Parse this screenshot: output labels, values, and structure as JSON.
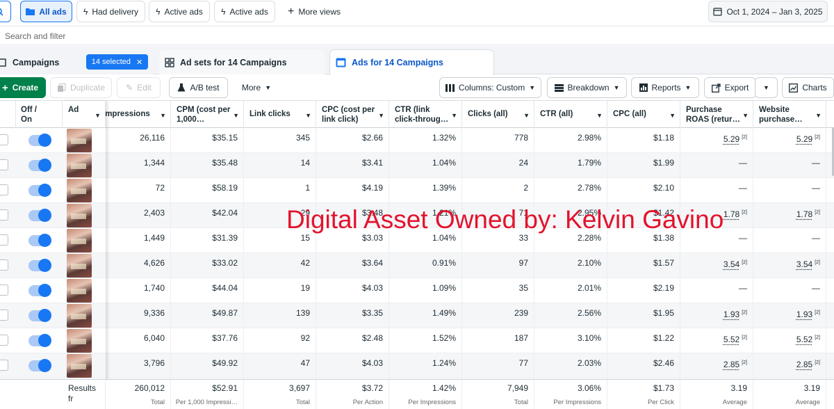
{
  "views": {
    "all_ads": "All ads",
    "had_delivery": "Had delivery",
    "active_ads_1": "Active ads",
    "active_ads_2": "Active ads",
    "more_views": "More views",
    "date_range": "Oct 1, 2024 – Jan 3, 2025"
  },
  "search": {
    "placeholder": "Search and filter"
  },
  "tabs": {
    "campaigns": "Campaigns",
    "selected": "14 selected",
    "ad_sets": "Ad sets for 14 Campaigns",
    "ads": "Ads for 14 Campaigns"
  },
  "toolbar": {
    "create": "Create",
    "duplicate": "Duplicate",
    "edit": "Edit",
    "ab_test": "A/B test",
    "more": "More",
    "columns": "Columns: Custom",
    "breakdown": "Breakdown",
    "reports": "Reports",
    "export": "Export",
    "charts": "Charts"
  },
  "columns": {
    "off_on": "Off /\nOn",
    "ad": "Ad",
    "impressions": "Impressions",
    "cpm": "CPM (cost per 1,000…",
    "link_clicks": "Link clicks",
    "cpc_link": "CPC (cost per link click)",
    "ctr_link": "CTR (link click-throug…",
    "clicks_all": "Clicks (all)",
    "ctr_all": "CTR (all)",
    "cpc_all": "CPC (all)",
    "purchase_roas": "Purchase ROAS (retur…",
    "website_purchase": "Website purchase…"
  },
  "rows": [
    {
      "impressions": "26,116",
      "cpm": "$35.15",
      "link_clicks": "345",
      "cpc_link": "$2.66",
      "ctr_link": "1.32%",
      "clicks_all": "778",
      "ctr_all": "2.98%",
      "cpc_all": "$1.18",
      "roas": "5.29",
      "web": "5.29",
      "note": "[2]"
    },
    {
      "impressions": "1,344",
      "cpm": "$35.48",
      "link_clicks": "14",
      "cpc_link": "$3.41",
      "ctr_link": "1.04%",
      "clicks_all": "24",
      "ctr_all": "1.79%",
      "cpc_all": "$1.99",
      "roas": "—",
      "web": "—",
      "note": ""
    },
    {
      "impressions": "72",
      "cpm": "$58.19",
      "link_clicks": "1",
      "cpc_link": "$4.19",
      "ctr_link": "1.39%",
      "clicks_all": "2",
      "ctr_all": "2.78%",
      "cpc_all": "$2.10",
      "roas": "—",
      "web": "—",
      "note": ""
    },
    {
      "impressions": "2,403",
      "cpm": "$42.04",
      "link_clicks": "29",
      "cpc_link": "$3.48",
      "ctr_link": "1.21%",
      "clicks_all": "71",
      "ctr_all": "2.95%",
      "cpc_all": "$1.42",
      "roas": "1.78",
      "web": "1.78",
      "note": "[2]"
    },
    {
      "impressions": "1,449",
      "cpm": "$31.39",
      "link_clicks": "15",
      "cpc_link": "$3.03",
      "ctr_link": "1.04%",
      "clicks_all": "33",
      "ctr_all": "2.28%",
      "cpc_all": "$1.38",
      "roas": "—",
      "web": "—",
      "note": ""
    },
    {
      "impressions": "4,626",
      "cpm": "$33.02",
      "link_clicks": "42",
      "cpc_link": "$3.64",
      "ctr_link": "0.91%",
      "clicks_all": "97",
      "ctr_all": "2.10%",
      "cpc_all": "$1.57",
      "roas": "3.54",
      "web": "3.54",
      "note": "[2]"
    },
    {
      "impressions": "1,740",
      "cpm": "$44.04",
      "link_clicks": "19",
      "cpc_link": "$4.03",
      "ctr_link": "1.09%",
      "clicks_all": "35",
      "ctr_all": "2.01%",
      "cpc_all": "$2.19",
      "roas": "—",
      "web": "—",
      "note": ""
    },
    {
      "impressions": "9,336",
      "cpm": "$49.87",
      "link_clicks": "139",
      "cpc_link": "$3.35",
      "ctr_link": "1.49%",
      "clicks_all": "239",
      "ctr_all": "2.56%",
      "cpc_all": "$1.95",
      "roas": "1.93",
      "web": "1.93",
      "note": "[2]"
    },
    {
      "impressions": "6,040",
      "cpm": "$37.76",
      "link_clicks": "92",
      "cpc_link": "$2.48",
      "ctr_link": "1.52%",
      "clicks_all": "187",
      "ctr_all": "3.10%",
      "cpc_all": "$1.22",
      "roas": "5.52",
      "web": "5.52",
      "note": "[2]"
    },
    {
      "impressions": "3,796",
      "cpm": "$49.92",
      "link_clicks": "47",
      "cpc_link": "$4.03",
      "ctr_link": "1.24%",
      "clicks_all": "77",
      "ctr_all": "2.03%",
      "cpc_all": "$2.46",
      "roas": "2.85",
      "web": "2.85",
      "note": "[2]"
    }
  ],
  "totals": {
    "label": "Results fr",
    "impressions": {
      "v": "260,012",
      "s": "Total"
    },
    "cpm": {
      "v": "$52.91",
      "s": "Per 1,000 Impressi…"
    },
    "link_clicks": {
      "v": "3,697",
      "s": "Total"
    },
    "cpc_link": {
      "v": "$3.72",
      "s": "Per Action"
    },
    "ctr_link": {
      "v": "1.42%",
      "s": "Per Impressions"
    },
    "clicks_all": {
      "v": "7,949",
      "s": "Total"
    },
    "ctr_all": {
      "v": "3.06%",
      "s": "Per Impressions"
    },
    "cpc_all": {
      "v": "$1.73",
      "s": "Per Click"
    },
    "roas": {
      "v": "3.19",
      "s": "Average"
    },
    "web": {
      "v": "3.19",
      "s": "Average"
    }
  },
  "watermark": "Digital Asset Owned by: Kelvin Gavino",
  "colors": {
    "accent": "#1877f2",
    "create": "#00804a",
    "watermark": "#e3132c"
  }
}
